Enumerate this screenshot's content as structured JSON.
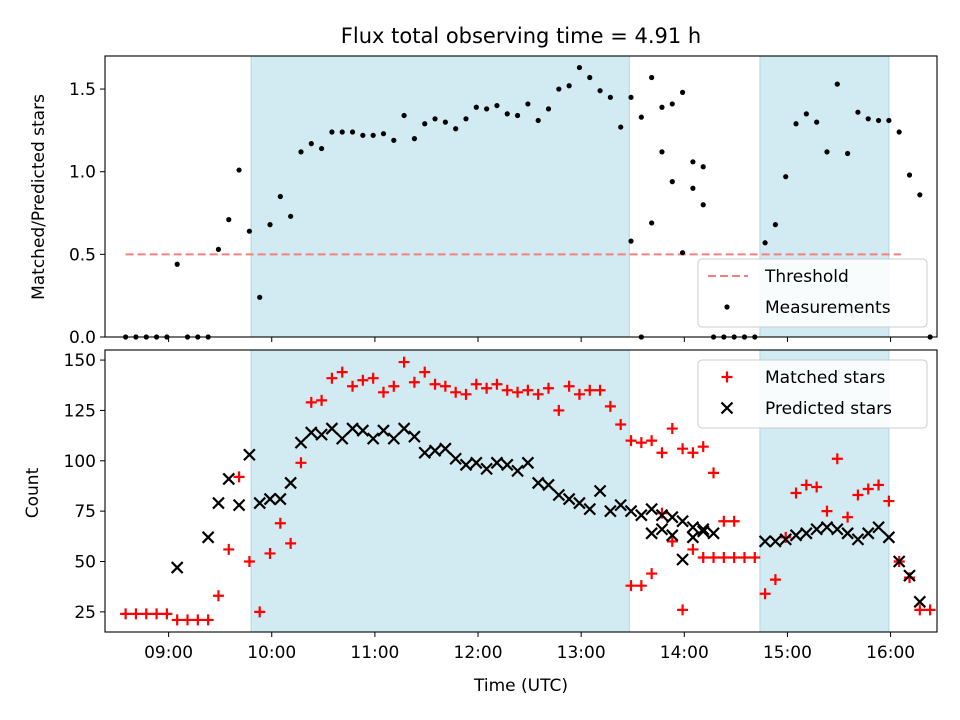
{
  "chart_data": [
    {
      "type": "scatter",
      "title": "Flux total observing time = 4.91 h",
      "ylabel": "Matched/Predicted stars",
      "xlabel": "",
      "ylim": [
        0,
        1.7
      ],
      "yticks": [
        "0.0",
        "0.5",
        "1.0",
        "1.5"
      ],
      "xlim": [
        "08:23",
        "16:27"
      ],
      "shaded_intervals": [
        [
          "09:48",
          "13:28"
        ],
        [
          "14:44",
          "15:59"
        ]
      ],
      "threshold": {
        "name": "Threshold",
        "value": 0.5,
        "x_range": [
          "08:35",
          "16:06"
        ],
        "color": "#f08080",
        "style": "dashed"
      },
      "legend": {
        "position": "bottom-right",
        "entries": [
          "Threshold",
          "Measurements"
        ]
      },
      "series": [
        {
          "name": "Measurements",
          "marker": "dot",
          "color": "#000000",
          "points": [
            [
              "08:35",
              0.0
            ],
            [
              "08:41",
              0.0
            ],
            [
              "08:47",
              0.0
            ],
            [
              "08:53",
              0.0
            ],
            [
              "08:59",
              0.0
            ],
            [
              "09:05",
              0.44
            ],
            [
              "09:11",
              0.0
            ],
            [
              "09:17",
              0.0
            ],
            [
              "09:23",
              0.0
            ],
            [
              "09:29",
              0.53
            ],
            [
              "09:35",
              0.71
            ],
            [
              "09:41",
              1.01
            ],
            [
              "09:47",
              0.64
            ],
            [
              "09:53",
              0.24
            ],
            [
              "09:59",
              0.68
            ],
            [
              "10:05",
              0.85
            ],
            [
              "10:11",
              0.73
            ],
            [
              "10:17",
              1.12
            ],
            [
              "10:23",
              1.17
            ],
            [
              "10:29",
              1.14
            ],
            [
              "10:35",
              1.24
            ],
            [
              "10:41",
              1.24
            ],
            [
              "10:47",
              1.24
            ],
            [
              "10:53",
              1.22
            ],
            [
              "10:59",
              1.22
            ],
            [
              "11:05",
              1.23
            ],
            [
              "11:11",
              1.19
            ],
            [
              "11:17",
              1.34
            ],
            [
              "11:23",
              1.2
            ],
            [
              "11:29",
              1.29
            ],
            [
              "11:35",
              1.32
            ],
            [
              "11:41",
              1.3
            ],
            [
              "11:47",
              1.26
            ],
            [
              "11:53",
              1.32
            ],
            [
              "11:59",
              1.39
            ],
            [
              "12:05",
              1.38
            ],
            [
              "12:11",
              1.4
            ],
            [
              "12:17",
              1.35
            ],
            [
              "12:23",
              1.34
            ],
            [
              "12:29",
              1.41
            ],
            [
              "12:35",
              1.31
            ],
            [
              "12:41",
              1.38
            ],
            [
              "12:47",
              1.5
            ],
            [
              "12:53",
              1.52
            ],
            [
              "12:59",
              1.63
            ],
            [
              "13:05",
              1.57
            ],
            [
              "13:11",
              1.49
            ],
            [
              "13:17",
              1.45
            ],
            [
              "13:23",
              1.27
            ],
            [
              "13:29",
              1.45
            ],
            [
              "13:35",
              1.33
            ],
            [
              "13:41",
              1.57
            ],
            [
              "13:47",
              1.39
            ],
            [
              "13:53",
              1.41
            ],
            [
              "13:59",
              1.48
            ],
            [
              "14:05",
              1.06
            ],
            [
              "14:11",
              1.03
            ],
            [
              "13:29",
              0.58
            ],
            [
              "13:35",
              0.0
            ],
            [
              "13:41",
              0.69
            ],
            [
              "13:47",
              1.12
            ],
            [
              "13:53",
              0.94
            ],
            [
              "13:59",
              0.51
            ],
            [
              "14:05",
              0.9
            ],
            [
              "14:11",
              0.8
            ],
            [
              "14:17",
              0.0
            ],
            [
              "14:23",
              0.0
            ],
            [
              "14:29",
              0.0
            ],
            [
              "14:35",
              0.0
            ],
            [
              "14:41",
              0.0
            ],
            [
              "14:47",
              0.57
            ],
            [
              "14:53",
              0.68
            ],
            [
              "14:59",
              0.97
            ],
            [
              "15:05",
              1.29
            ],
            [
              "15:11",
              1.35
            ],
            [
              "15:17",
              1.3
            ],
            [
              "15:23",
              1.12
            ],
            [
              "15:29",
              1.53
            ],
            [
              "15:35",
              1.11
            ],
            [
              "15:41",
              1.36
            ],
            [
              "15:47",
              1.32
            ],
            [
              "15:53",
              1.31
            ],
            [
              "15:59",
              1.31
            ],
            [
              "16:05",
              1.24
            ],
            [
              "16:11",
              0.98
            ],
            [
              "16:17",
              0.86
            ],
            [
              "16:23",
              0.0
            ]
          ]
        }
      ]
    },
    {
      "type": "scatter",
      "title": "",
      "xlabel": "Time (UTC)",
      "ylabel": "Count",
      "ylim": [
        15,
        155
      ],
      "yticks": [
        "25",
        "50",
        "75",
        "100",
        "125",
        "150"
      ],
      "xlim": [
        "08:23",
        "16:27"
      ],
      "xticks": [
        "09:00",
        "10:00",
        "11:00",
        "12:00",
        "13:00",
        "14:00",
        "15:00",
        "16:00"
      ],
      "shaded_intervals": [
        [
          "09:48",
          "13:28"
        ],
        [
          "14:44",
          "15:59"
        ]
      ],
      "legend": {
        "position": "top-right",
        "entries": [
          "Matched stars",
          "Predicted stars"
        ]
      },
      "series": [
        {
          "name": "Matched stars",
          "marker": "plus",
          "color": "#ff0000",
          "points": [
            [
              "08:35",
              24
            ],
            [
              "08:41",
              24
            ],
            [
              "08:47",
              24
            ],
            [
              "08:53",
              24
            ],
            [
              "08:59",
              24
            ],
            [
              "09:05",
              21
            ],
            [
              "09:11",
              21
            ],
            [
              "09:17",
              21
            ],
            [
              "09:23",
              21
            ],
            [
              "09:29",
              33
            ],
            [
              "09:35",
              56
            ],
            [
              "09:41",
              92
            ],
            [
              "09:47",
              50
            ],
            [
              "09:53",
              25
            ],
            [
              "09:59",
              54
            ],
            [
              "10:05",
              69
            ],
            [
              "10:11",
              59
            ],
            [
              "10:17",
              99
            ],
            [
              "10:23",
              129
            ],
            [
              "10:29",
              130
            ],
            [
              "10:35",
              141
            ],
            [
              "10:41",
              144
            ],
            [
              "10:47",
              137
            ],
            [
              "10:53",
              140
            ],
            [
              "10:59",
              141
            ],
            [
              "11:05",
              134
            ],
            [
              "11:11",
              137
            ],
            [
              "11:17",
              149
            ],
            [
              "11:23",
              139
            ],
            [
              "11:29",
              144
            ],
            [
              "11:35",
              138
            ],
            [
              "11:41",
              137
            ],
            [
              "11:47",
              134
            ],
            [
              "11:53",
              133
            ],
            [
              "11:59",
              138
            ],
            [
              "12:05",
              136
            ],
            [
              "12:11",
              138
            ],
            [
              "12:17",
              135
            ],
            [
              "12:23",
              134
            ],
            [
              "12:29",
              135
            ],
            [
              "12:35",
              133
            ],
            [
              "12:41",
              136
            ],
            [
              "12:47",
              125
            ],
            [
              "12:53",
              137
            ],
            [
              "12:59",
              133
            ],
            [
              "13:05",
              135
            ],
            [
              "13:11",
              135
            ],
            [
              "13:17",
              127
            ],
            [
              "13:23",
              118
            ],
            [
              "13:29",
              110
            ],
            [
              "13:35",
              109
            ],
            [
              "13:41",
              110
            ],
            [
              "13:47",
              104
            ],
            [
              "13:53",
              116
            ],
            [
              "13:59",
              106
            ],
            [
              "14:05",
              104
            ],
            [
              "14:11",
              107
            ],
            [
              "14:17",
              94
            ],
            [
              "14:23",
              70
            ],
            [
              "14:29",
              70
            ],
            [
              "13:29",
              38
            ],
            [
              "13:35",
              38
            ],
            [
              "13:41",
              44
            ],
            [
              "13:47",
              74
            ],
            [
              "13:53",
              60
            ],
            [
              "13:59",
              26
            ],
            [
              "14:05",
              56
            ],
            [
              "14:11",
              52
            ],
            [
              "14:17",
              52
            ],
            [
              "14:23",
              52
            ],
            [
              "14:29",
              52
            ],
            [
              "14:35",
              52
            ],
            [
              "14:41",
              52
            ],
            [
              "14:47",
              34
            ],
            [
              "14:53",
              41
            ],
            [
              "14:59",
              62
            ],
            [
              "15:05",
              84
            ],
            [
              "15:11",
              88
            ],
            [
              "15:17",
              87
            ],
            [
              "15:23",
              75
            ],
            [
              "15:29",
              101
            ],
            [
              "15:35",
              72
            ],
            [
              "15:41",
              83
            ],
            [
              "15:47",
              86
            ],
            [
              "15:53",
              88
            ],
            [
              "15:59",
              80
            ],
            [
              "16:05",
              50
            ],
            [
              "16:11",
              42
            ],
            [
              "16:17",
              26
            ],
            [
              "16:23",
              26
            ]
          ]
        },
        {
          "name": "Predicted stars",
          "marker": "x",
          "color": "#000000",
          "points": [
            [
              "09:05",
              47
            ],
            [
              "09:23",
              62
            ],
            [
              "09:29",
              79
            ],
            [
              "09:35",
              91
            ],
            [
              "09:41",
              78
            ],
            [
              "09:47",
              103
            ],
            [
              "09:53",
              79
            ],
            [
              "09:59",
              81
            ],
            [
              "10:05",
              81
            ],
            [
              "10:11",
              89
            ],
            [
              "10:17",
              109
            ],
            [
              "10:23",
              114
            ],
            [
              "10:29",
              113
            ],
            [
              "10:35",
              116
            ],
            [
              "10:41",
              111
            ],
            [
              "10:47",
              116
            ],
            [
              "10:53",
              115
            ],
            [
              "10:59",
              111
            ],
            [
              "11:05",
              115
            ],
            [
              "11:11",
              111
            ],
            [
              "11:17",
              116
            ],
            [
              "11:23",
              112
            ],
            [
              "11:29",
              104
            ],
            [
              "11:35",
              105
            ],
            [
              "11:41",
              106
            ],
            [
              "11:47",
              101
            ],
            [
              "11:53",
              98
            ],
            [
              "11:59",
              99
            ],
            [
              "12:05",
              96
            ],
            [
              "12:11",
              99
            ],
            [
              "12:17",
              98
            ],
            [
              "12:23",
              95
            ],
            [
              "12:29",
              99
            ],
            [
              "12:35",
              89
            ],
            [
              "12:41",
              88
            ],
            [
              "12:47",
              83
            ],
            [
              "12:53",
              81
            ],
            [
              "12:59",
              79
            ],
            [
              "13:05",
              76
            ],
            [
              "13:11",
              85
            ],
            [
              "13:17",
              75
            ],
            [
              "13:23",
              78
            ],
            [
              "13:29",
              75
            ],
            [
              "13:35",
              73
            ],
            [
              "13:41",
              76
            ],
            [
              "13:47",
              73
            ],
            [
              "13:53",
              72
            ],
            [
              "13:59",
              70
            ],
            [
              "14:05",
              67
            ],
            [
              "14:11",
              66
            ],
            [
              "14:17",
              64
            ],
            [
              "13:41",
              64
            ],
            [
              "13:47",
              66
            ],
            [
              "13:53",
              63
            ],
            [
              "13:59",
              51
            ],
            [
              "14:05",
              62
            ],
            [
              "14:11",
              65
            ],
            [
              "14:47",
              60
            ],
            [
              "14:53",
              60
            ],
            [
              "14:59",
              61
            ],
            [
              "15:05",
              63
            ],
            [
              "15:11",
              64
            ],
            [
              "15:17",
              66
            ],
            [
              "15:23",
              67
            ],
            [
              "15:29",
              66
            ],
            [
              "15:35",
              64
            ],
            [
              "15:41",
              61
            ],
            [
              "15:47",
              64
            ],
            [
              "15:53",
              67
            ],
            [
              "15:59",
              62
            ],
            [
              "16:05",
              50
            ],
            [
              "16:11",
              43
            ],
            [
              "16:17",
              30
            ]
          ]
        }
      ]
    }
  ]
}
